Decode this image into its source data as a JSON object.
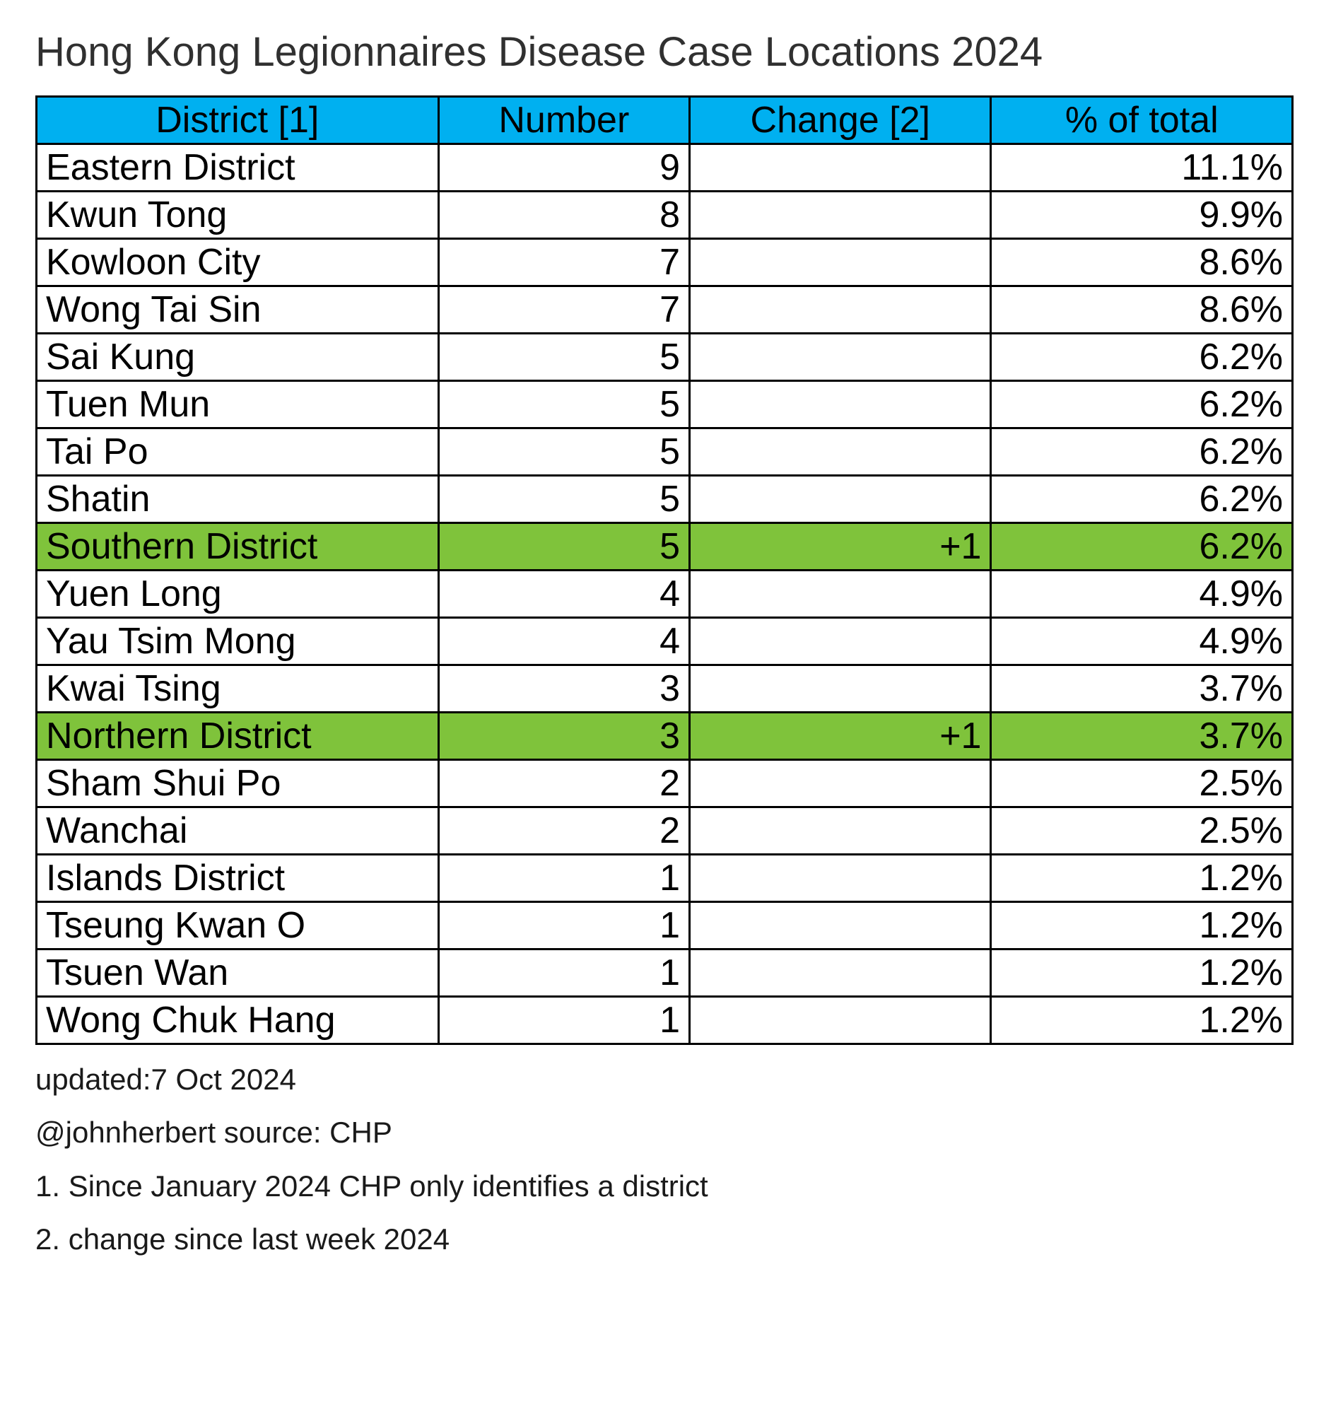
{
  "title": "Hong Kong Legionnaires Disease Case Locations 2024",
  "table": {
    "header_bg": "#00b0f0",
    "highlight_bg": "#7fc33b",
    "border_color": "#000000",
    "columns": [
      {
        "key": "district",
        "label": "District [1]",
        "align": "left",
        "width_pct": 32
      },
      {
        "key": "number",
        "label": "Number",
        "align": "right",
        "width_pct": 20
      },
      {
        "key": "change",
        "label": "Change [2]",
        "align": "right",
        "width_pct": 24
      },
      {
        "key": "pct",
        "label": "% of total",
        "align": "right",
        "width_pct": 24
      }
    ],
    "rows": [
      {
        "district": "Eastern District",
        "number": "9",
        "change": "",
        "pct": "11.1%",
        "highlight": false
      },
      {
        "district": "Kwun Tong",
        "number": "8",
        "change": "",
        "pct": "9.9%",
        "highlight": false
      },
      {
        "district": "Kowloon City",
        "number": "7",
        "change": "",
        "pct": "8.6%",
        "highlight": false
      },
      {
        "district": "Wong Tai Sin",
        "number": "7",
        "change": "",
        "pct": "8.6%",
        "highlight": false
      },
      {
        "district": "Sai Kung",
        "number": "5",
        "change": "",
        "pct": "6.2%",
        "highlight": false
      },
      {
        "district": "Tuen Mun",
        "number": "5",
        "change": "",
        "pct": "6.2%",
        "highlight": false
      },
      {
        "district": "Tai Po",
        "number": "5",
        "change": "",
        "pct": "6.2%",
        "highlight": false
      },
      {
        "district": "Shatin",
        "number": "5",
        "change": "",
        "pct": "6.2%",
        "highlight": false
      },
      {
        "district": "Southern District",
        "number": "5",
        "change": "+1",
        "pct": "6.2%",
        "highlight": true
      },
      {
        "district": "Yuen Long",
        "number": "4",
        "change": "",
        "pct": "4.9%",
        "highlight": false
      },
      {
        "district": "Yau Tsim Mong",
        "number": "4",
        "change": "",
        "pct": "4.9%",
        "highlight": false
      },
      {
        "district": "Kwai Tsing",
        "number": "3",
        "change": "",
        "pct": "3.7%",
        "highlight": false
      },
      {
        "district": "Northern District",
        "number": "3",
        "change": "+1",
        "pct": "3.7%",
        "highlight": true
      },
      {
        "district": "Sham Shui Po",
        "number": "2",
        "change": "",
        "pct": "2.5%",
        "highlight": false
      },
      {
        "district": "Wanchai",
        "number": "2",
        "change": "",
        "pct": "2.5%",
        "highlight": false
      },
      {
        "district": "Islands District",
        "number": "1",
        "change": "",
        "pct": "1.2%",
        "highlight": false
      },
      {
        "district": "Tseung Kwan O",
        "number": "1",
        "change": "",
        "pct": "1.2%",
        "highlight": false
      },
      {
        "district": "Tsuen Wan",
        "number": "1",
        "change": "",
        "pct": "1.2%",
        "highlight": false
      },
      {
        "district": "Wong Chuk Hang",
        "number": "1",
        "change": "",
        "pct": "1.2%",
        "highlight": false
      }
    ]
  },
  "footnotes": {
    "updated": "updated:7 Oct 2024",
    "source": "@johnherbert source: CHP",
    "note1": "1. Since January 2024 CHP only identifies a district",
    "note2": "2. change since last week 2024"
  }
}
